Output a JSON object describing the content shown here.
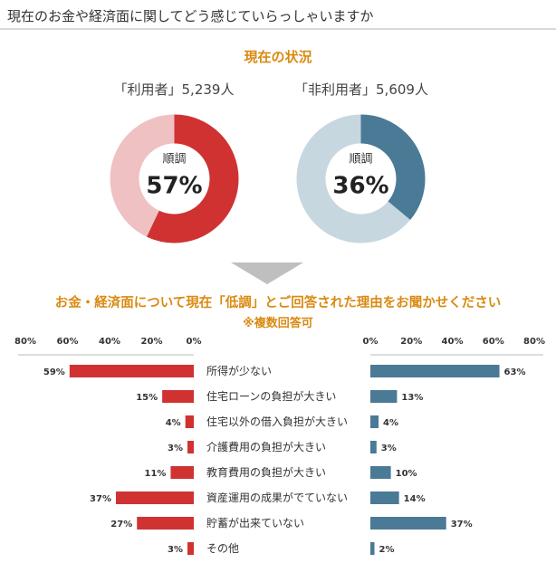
{
  "page": {
    "title": "現在のお金や経済面に関してどう感じていらっしゃいますか"
  },
  "status_section": {
    "title": "現在の状況"
  },
  "reason_section": {
    "title": "お金・経済面について現在「低調」とご回答された理由をお聞かせください",
    "note": "※複数回答可"
  },
  "colors": {
    "red": "#d03232",
    "red_light": "#efc1c3",
    "blue": "#4a7a96",
    "blue_light": "#c7d7e0",
    "accent": "#d98a12",
    "arrow": "#bfbfbf"
  },
  "chart_data": [
    {
      "type": "pie",
      "title": "「利用者」5,239人",
      "center_label": "順調",
      "center_value": "57%",
      "slices": [
        {
          "label": "順調",
          "value": 57
        },
        {
          "label": "",
          "value": 43
        }
      ]
    },
    {
      "type": "pie",
      "title": "「非利用者」5,609人",
      "center_label": "順調",
      "center_value": "36%",
      "slices": [
        {
          "label": "順調",
          "value": 36
        },
        {
          "label": "",
          "value": 64
        }
      ]
    },
    {
      "type": "bar",
      "orientation": "horizontal-butterfly",
      "categories": [
        "所得が少ない",
        "住宅ローンの負担が大きい",
        "住宅以外の借入負担が大きい",
        "介護費用の負担が大きい",
        "教育費用の負担が大きい",
        "資産運用の成果がでていない",
        "貯蓄が出来ていない",
        "その他"
      ],
      "xlim": [
        0,
        80
      ],
      "ticks": [
        "0%",
        "20%",
        "40%",
        "60%",
        "80%"
      ],
      "series": [
        {
          "values": [
            59,
            15,
            4,
            3,
            11,
            37,
            27,
            3
          ],
          "labels": [
            "59%",
            "15%",
            "4%",
            "3%",
            "11%",
            "37%",
            "27%",
            "3%"
          ]
        },
        {
          "values": [
            63,
            13,
            4,
            3,
            10,
            14,
            37,
            2
          ],
          "labels": [
            "63%",
            "13%",
            "4%",
            "3%",
            "10%",
            "14%",
            "37%",
            "2%"
          ]
        }
      ]
    }
  ]
}
